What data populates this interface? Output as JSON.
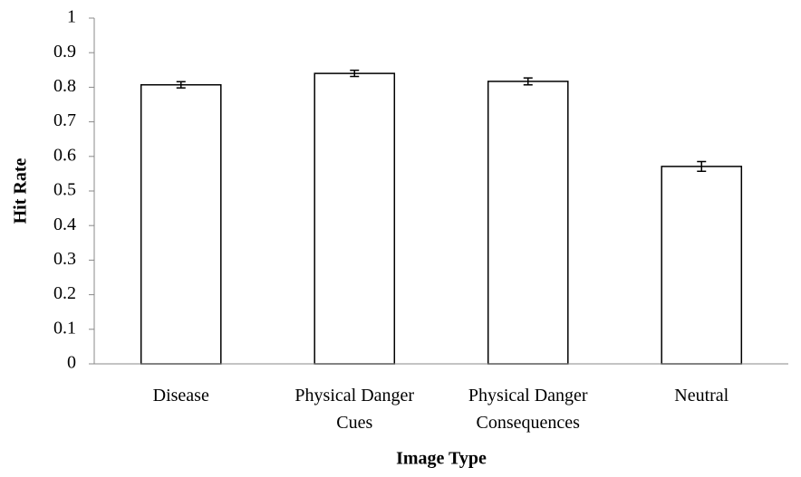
{
  "chart_data": {
    "type": "bar",
    "x_label": "Image Type",
    "y_label": "Hit Rate",
    "categories": [
      "Disease",
      "Physical Danger\nCues",
      "Physical Danger\nConsequences",
      "Neutral"
    ],
    "values": [
      0.807,
      0.84,
      0.817,
      0.571
    ],
    "errors": [
      0.009,
      0.009,
      0.01,
      0.014
    ],
    "color": "#ffffff",
    "edge_color": "#000000",
    "ylim": [
      0,
      1
    ],
    "yticks": [
      0,
      0.1,
      0.2,
      0.3,
      0.4,
      0.5,
      0.6,
      0.7,
      0.8,
      0.9,
      1
    ],
    "grid": false
  }
}
